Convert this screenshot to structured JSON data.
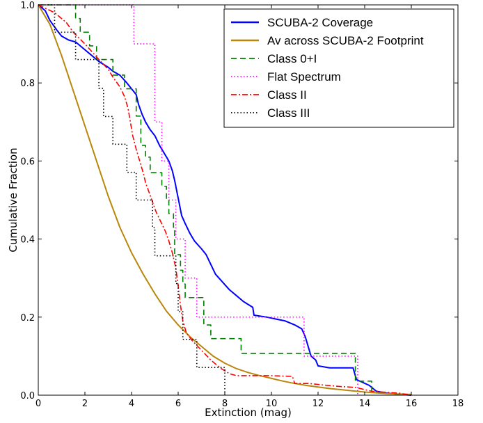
{
  "chart_data": {
    "type": "line",
    "xlabel": "Extinction (mag)",
    "ylabel": "Cumulative Fraction",
    "xlim": [
      0,
      18
    ],
    "ylim": [
      0,
      1
    ],
    "xticks": [
      0,
      2,
      4,
      6,
      8,
      10,
      12,
      14,
      16,
      18
    ],
    "yticks": [
      0.0,
      0.2,
      0.4,
      0.6,
      0.8,
      1.0
    ],
    "xtick_labels": [
      "0",
      "2",
      "4",
      "6",
      "8",
      "10",
      "12",
      "14",
      "16",
      "18"
    ],
    "ytick_labels": [
      "0.0",
      "0.2",
      "0.4",
      "0.6",
      "0.8",
      "1.0"
    ],
    "grid": false,
    "legend_position": "top-right",
    "series": [
      {
        "name": "SCUBA-2 Coverage",
        "color": "#0000ff",
        "style": "solid",
        "points": [
          [
            0,
            1.0
          ],
          [
            0.3,
            0.985
          ],
          [
            0.5,
            0.96
          ],
          [
            0.8,
            0.935
          ],
          [
            1.0,
            0.92
          ],
          [
            1.3,
            0.91
          ],
          [
            1.6,
            0.905
          ],
          [
            2.0,
            0.885
          ],
          [
            2.3,
            0.87
          ],
          [
            2.6,
            0.855
          ],
          [
            3.0,
            0.84
          ],
          [
            3.2,
            0.83
          ],
          [
            3.5,
            0.82
          ],
          [
            3.8,
            0.8
          ],
          [
            4.0,
            0.785
          ],
          [
            4.2,
            0.77
          ],
          [
            4.3,
            0.745
          ],
          [
            4.45,
            0.72
          ],
          [
            4.6,
            0.7
          ],
          [
            4.8,
            0.68
          ],
          [
            5.0,
            0.665
          ],
          [
            5.2,
            0.64
          ],
          [
            5.4,
            0.62
          ],
          [
            5.6,
            0.6
          ],
          [
            5.75,
            0.575
          ],
          [
            5.85,
            0.55
          ],
          [
            5.95,
            0.52
          ],
          [
            6.05,
            0.49
          ],
          [
            6.15,
            0.46
          ],
          [
            6.3,
            0.44
          ],
          [
            6.5,
            0.415
          ],
          [
            6.7,
            0.395
          ],
          [
            7.0,
            0.375
          ],
          [
            7.2,
            0.36
          ],
          [
            7.4,
            0.335
          ],
          [
            7.6,
            0.31
          ],
          [
            7.9,
            0.29
          ],
          [
            8.2,
            0.27
          ],
          [
            8.5,
            0.255
          ],
          [
            8.8,
            0.24
          ],
          [
            9.2,
            0.225
          ],
          [
            9.25,
            0.205
          ],
          [
            9.8,
            0.2
          ],
          [
            10.2,
            0.195
          ],
          [
            10.6,
            0.19
          ],
          [
            11.0,
            0.18
          ],
          [
            11.3,
            0.17
          ],
          [
            11.45,
            0.15
          ],
          [
            11.6,
            0.12
          ],
          [
            11.7,
            0.1
          ],
          [
            11.9,
            0.09
          ],
          [
            12.0,
            0.075
          ],
          [
            12.5,
            0.07
          ],
          [
            13.0,
            0.07
          ],
          [
            13.5,
            0.07
          ],
          [
            13.65,
            0.04
          ],
          [
            14.2,
            0.025
          ],
          [
            14.5,
            0.01
          ],
          [
            15.0,
            0.005
          ],
          [
            15.5,
            0.002
          ],
          [
            16,
            0.0
          ]
        ]
      },
      {
        "name": "Av across SCUBA-2 Footprint",
        "color": "#b8860b",
        "style": "solid",
        "points": [
          [
            0,
            1.0
          ],
          [
            0.5,
            0.95
          ],
          [
            1.0,
            0.87
          ],
          [
            1.5,
            0.78
          ],
          [
            2.0,
            0.69
          ],
          [
            2.5,
            0.6
          ],
          [
            3.0,
            0.51
          ],
          [
            3.5,
            0.43
          ],
          [
            4.0,
            0.365
          ],
          [
            4.5,
            0.31
          ],
          [
            5.0,
            0.26
          ],
          [
            5.5,
            0.215
          ],
          [
            6.0,
            0.18
          ],
          [
            6.5,
            0.15
          ],
          [
            7.0,
            0.125
          ],
          [
            7.5,
            0.1
          ],
          [
            8.0,
            0.082
          ],
          [
            8.5,
            0.068
          ],
          [
            9.0,
            0.058
          ],
          [
            9.5,
            0.05
          ],
          [
            10.0,
            0.043
          ],
          [
            10.5,
            0.036
          ],
          [
            11.0,
            0.03
          ],
          [
            11.5,
            0.025
          ],
          [
            12.0,
            0.021
          ],
          [
            12.5,
            0.017
          ],
          [
            13.0,
            0.014
          ],
          [
            13.5,
            0.011
          ],
          [
            14.0,
            0.008
          ],
          [
            14.5,
            0.006
          ],
          [
            15.0,
            0.004
          ],
          [
            15.5,
            0.003
          ],
          [
            16,
            0.002
          ]
        ]
      },
      {
        "name": "Class 0+I",
        "color": "#007f00",
        "style": "dashed",
        "step": true,
        "points": [
          [
            0,
            1.0
          ],
          [
            1.6,
            1.0
          ],
          [
            1.6,
            0.965
          ],
          [
            1.8,
            0.965
          ],
          [
            1.8,
            0.93
          ],
          [
            2.2,
            0.93
          ],
          [
            2.2,
            0.895
          ],
          [
            2.5,
            0.895
          ],
          [
            2.5,
            0.86
          ],
          [
            3.2,
            0.86
          ],
          [
            3.2,
            0.82
          ],
          [
            3.7,
            0.82
          ],
          [
            3.7,
            0.785
          ],
          [
            4.2,
            0.785
          ],
          [
            4.2,
            0.715
          ],
          [
            4.4,
            0.715
          ],
          [
            4.4,
            0.64
          ],
          [
            4.6,
            0.64
          ],
          [
            4.6,
            0.61
          ],
          [
            4.8,
            0.61
          ],
          [
            4.8,
            0.57
          ],
          [
            5.3,
            0.57
          ],
          [
            5.3,
            0.535
          ],
          [
            5.5,
            0.535
          ],
          [
            5.5,
            0.5
          ],
          [
            5.6,
            0.5
          ],
          [
            5.6,
            0.465
          ],
          [
            5.8,
            0.465
          ],
          [
            5.8,
            0.43
          ],
          [
            5.85,
            0.43
          ],
          [
            5.85,
            0.36
          ],
          [
            6.1,
            0.36
          ],
          [
            6.1,
            0.32
          ],
          [
            6.2,
            0.32
          ],
          [
            6.2,
            0.285
          ],
          [
            6.3,
            0.285
          ],
          [
            6.3,
            0.25
          ],
          [
            7.1,
            0.25
          ],
          [
            7.1,
            0.18
          ],
          [
            7.4,
            0.18
          ],
          [
            7.4,
            0.145
          ],
          [
            8.7,
            0.145
          ],
          [
            8.7,
            0.107
          ],
          [
            13.6,
            0.107
          ],
          [
            13.6,
            0.036
          ],
          [
            14.3,
            0.036
          ],
          [
            14.3,
            0.0
          ]
        ]
      },
      {
        "name": "Flat Spectrum",
        "color": "#ff00ff",
        "style": "dotted",
        "step": true,
        "points": [
          [
            0,
            1.0
          ],
          [
            4.1,
            1.0
          ],
          [
            4.1,
            0.9
          ],
          [
            5.0,
            0.9
          ],
          [
            5.0,
            0.7
          ],
          [
            5.3,
            0.7
          ],
          [
            5.3,
            0.6
          ],
          [
            5.6,
            0.6
          ],
          [
            5.6,
            0.5
          ],
          [
            5.9,
            0.5
          ],
          [
            5.9,
            0.4
          ],
          [
            6.3,
            0.4
          ],
          [
            6.3,
            0.3
          ],
          [
            6.8,
            0.3
          ],
          [
            6.8,
            0.2
          ],
          [
            11.4,
            0.2
          ],
          [
            11.4,
            0.1
          ],
          [
            13.7,
            0.1
          ],
          [
            13.7,
            0.0
          ]
        ]
      },
      {
        "name": "Class II",
        "color": "#ff0000",
        "style": "dashdot",
        "points": [
          [
            0,
            1.0
          ],
          [
            0.7,
            0.98
          ],
          [
            1.2,
            0.955
          ],
          [
            1.5,
            0.93
          ],
          [
            2.0,
            0.9
          ],
          [
            2.3,
            0.88
          ],
          [
            2.6,
            0.86
          ],
          [
            3.0,
            0.835
          ],
          [
            3.2,
            0.815
          ],
          [
            3.5,
            0.79
          ],
          [
            3.7,
            0.765
          ],
          [
            3.85,
            0.735
          ],
          [
            3.95,
            0.7
          ],
          [
            4.05,
            0.665
          ],
          [
            4.2,
            0.63
          ],
          [
            4.35,
            0.6
          ],
          [
            4.5,
            0.57
          ],
          [
            4.6,
            0.545
          ],
          [
            4.75,
            0.52
          ],
          [
            4.9,
            0.495
          ],
          [
            5.05,
            0.47
          ],
          [
            5.25,
            0.445
          ],
          [
            5.45,
            0.42
          ],
          [
            5.6,
            0.395
          ],
          [
            5.75,
            0.365
          ],
          [
            5.9,
            0.325
          ],
          [
            6.0,
            0.28
          ],
          [
            6.1,
            0.23
          ],
          [
            6.2,
            0.19
          ],
          [
            6.35,
            0.16
          ],
          [
            6.6,
            0.14
          ],
          [
            7.0,
            0.115
          ],
          [
            7.4,
            0.09
          ],
          [
            7.8,
            0.07
          ],
          [
            8.2,
            0.055
          ],
          [
            8.5,
            0.05
          ],
          [
            9.0,
            0.05
          ],
          [
            10.0,
            0.05
          ],
          [
            10.9,
            0.048
          ],
          [
            11.0,
            0.03
          ],
          [
            11.6,
            0.03
          ],
          [
            12.4,
            0.025
          ],
          [
            13.0,
            0.022
          ],
          [
            13.6,
            0.02
          ],
          [
            14.3,
            0.01
          ],
          [
            15.5,
            0.005
          ],
          [
            16.0,
            0.0
          ]
        ]
      },
      {
        "name": "Class III",
        "color": "#000000",
        "style": "dotted",
        "step": true,
        "points": [
          [
            0,
            1.0
          ],
          [
            0.7,
            1.0
          ],
          [
            0.7,
            0.93
          ],
          [
            1.6,
            0.93
          ],
          [
            1.6,
            0.86
          ],
          [
            2.6,
            0.86
          ],
          [
            2.6,
            0.786
          ],
          [
            2.8,
            0.786
          ],
          [
            2.8,
            0.714
          ],
          [
            3.2,
            0.714
          ],
          [
            3.2,
            0.643
          ],
          [
            3.8,
            0.643
          ],
          [
            3.8,
            0.571
          ],
          [
            4.2,
            0.571
          ],
          [
            4.2,
            0.5
          ],
          [
            4.9,
            0.5
          ],
          [
            4.9,
            0.429
          ],
          [
            5.0,
            0.429
          ],
          [
            5.0,
            0.357
          ],
          [
            5.9,
            0.357
          ],
          [
            5.9,
            0.286
          ],
          [
            6.0,
            0.286
          ],
          [
            6.0,
            0.214
          ],
          [
            6.2,
            0.214
          ],
          [
            6.2,
            0.143
          ],
          [
            6.8,
            0.143
          ],
          [
            6.8,
            0.071
          ],
          [
            8.0,
            0.071
          ],
          [
            8.0,
            0.0
          ]
        ]
      }
    ]
  }
}
